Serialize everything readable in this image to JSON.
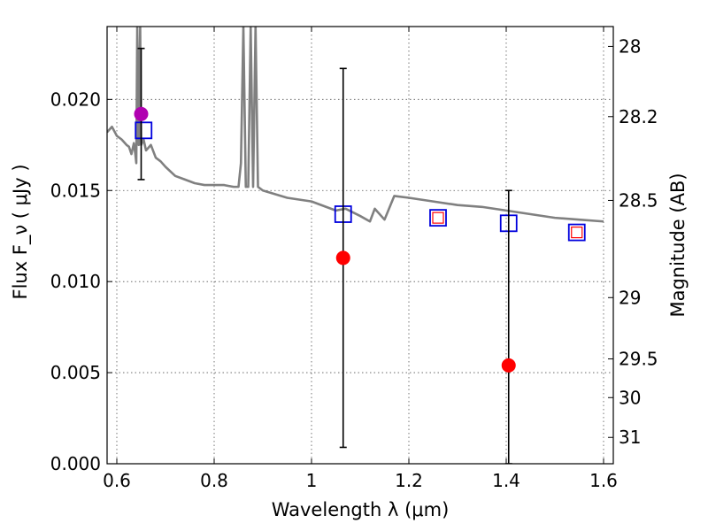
{
  "chart_data": {
    "type": "scatter",
    "xlabel": "Wavelength  λ (μm)",
    "ylabel": "Flux  F_ν  ( μJy )",
    "ylabel_right": "Magnitude (AB)",
    "xlim": [
      0.58,
      1.62
    ],
    "ylim": [
      0.0,
      0.024
    ],
    "grid": true,
    "x_ticks": [
      0.6,
      0.8,
      1.0,
      1.2,
      1.4,
      1.6
    ],
    "x_tick_labels": [
      "0.6",
      "0.8",
      "1",
      "1.2",
      "1.4",
      "1.6"
    ],
    "y_ticks": [
      0.0,
      0.005,
      0.01,
      0.015,
      0.02
    ],
    "y_tick_labels": [
      "0.000",
      "0.005",
      "0.010",
      "0.015",
      "0.020"
    ],
    "mag_ticks": [
      28,
      28.2,
      28.5,
      29,
      29.5,
      30,
      31
    ],
    "mag_tick_labels": [
      "28",
      "28.2",
      "28.5",
      "29",
      "29.5",
      "30",
      "31"
    ],
    "series": [
      {
        "kind": "line",
        "color": "#808080",
        "x": [
          0.58,
          0.59,
          0.6,
          0.61,
          0.62,
          0.625,
          0.63,
          0.635,
          0.638,
          0.64,
          0.642,
          0.645,
          0.648,
          0.65,
          0.655,
          0.66,
          0.67,
          0.68,
          0.69,
          0.7,
          0.72,
          0.74,
          0.76,
          0.78,
          0.8,
          0.82,
          0.84,
          0.85,
          0.855,
          0.86,
          0.865,
          0.87,
          0.875,
          0.88,
          0.885,
          0.89,
          0.9,
          0.95,
          1.0,
          1.05,
          1.07,
          1.1,
          1.12,
          1.13,
          1.15,
          1.17,
          1.2,
          1.25,
          1.3,
          1.35,
          1.4,
          1.45,
          1.5,
          1.55,
          1.6
        ],
        "y": [
          0.0182,
          0.0185,
          0.018,
          0.0178,
          0.0175,
          0.0174,
          0.017,
          0.0176,
          0.017,
          0.0165,
          0.024,
          0.0175,
          0.024,
          0.0175,
          0.0178,
          0.0172,
          0.0175,
          0.0168,
          0.0166,
          0.0163,
          0.0158,
          0.0156,
          0.0154,
          0.0153,
          0.0153,
          0.0153,
          0.0152,
          0.0152,
          0.0165,
          0.024,
          0.0152,
          0.0152,
          0.024,
          0.0152,
          0.024,
          0.0152,
          0.015,
          0.0146,
          0.0144,
          0.0139,
          0.014,
          0.0136,
          0.0133,
          0.014,
          0.0134,
          0.0147,
          0.0146,
          0.0144,
          0.0142,
          0.0141,
          0.0139,
          0.0137,
          0.0135,
          0.0134,
          0.0133
        ]
      },
      {
        "kind": "measured_points",
        "color": "#ff0000",
        "x": [
          1.065,
          1.405
        ],
        "y": [
          0.0113,
          0.0054
        ],
        "yerr_low": [
          0.0104,
          0.0054
        ],
        "yerr_high": [
          0.0104,
          0.0096
        ]
      },
      {
        "kind": "measured_point",
        "color": "#b000b0",
        "x": [
          0.65
        ],
        "y": [
          0.0192
        ],
        "yerr_low": [
          0.0036
        ],
        "yerr_high": [
          0.0036
        ]
      },
      {
        "kind": "model_squares_blue",
        "color": "#0000dd",
        "x": [
          0.655,
          1.065,
          1.26,
          1.405,
          1.545
        ],
        "y": [
          0.0183,
          0.0137,
          0.0135,
          0.0132,
          0.0127
        ]
      },
      {
        "kind": "model_squares_red",
        "color": "#ff0000",
        "x": [
          1.26,
          1.545
        ],
        "y": [
          0.0135,
          0.0127
        ]
      }
    ]
  }
}
